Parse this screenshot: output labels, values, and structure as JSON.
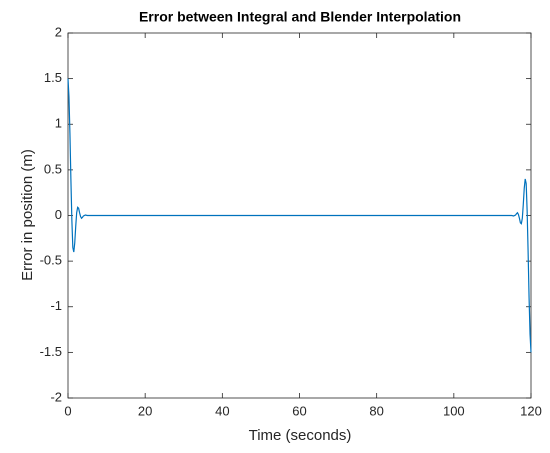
{
  "chart_data": {
    "type": "line",
    "title": "Error between Integral and Blender Interpolation",
    "x_label": "Time (seconds)",
    "y_label": "Error in position (m)",
    "x": [
      0,
      0.25,
      0.5,
      0.75,
      1,
      1.25,
      1.5,
      1.75,
      2,
      2.25,
      2.5,
      2.75,
      3,
      3.25,
      3.5,
      3.75,
      4,
      4.5,
      5,
      115,
      115.5,
      116,
      116.25,
      116.5,
      116.75,
      117,
      117.25,
      117.5,
      117.75,
      118,
      118.25,
      118.5,
      118.75,
      119,
      119.25,
      119.5,
      119.75,
      120
    ],
    "series": [
      {
        "color": "#0072bd",
        "values": [
          1.5,
          1.3,
          0.9,
          0.4,
          -0.05,
          -0.35,
          -0.4,
          -0.3,
          -0.12,
          0.03,
          0.09,
          0.08,
          0.03,
          -0.01,
          -0.03,
          -0.02,
          -0.005,
          0.005,
          0,
          0,
          -0.005,
          0.005,
          0.02,
          0.03,
          0.01,
          -0.03,
          -0.08,
          -0.09,
          -0.03,
          0.12,
          0.3,
          0.4,
          0.35,
          0.05,
          -0.4,
          -0.9,
          -1.3,
          -1.5
        ]
      }
    ],
    "xlim": [
      0,
      120
    ],
    "xticks": [
      0,
      20,
      40,
      60,
      80,
      100,
      120
    ],
    "ylim": [
      -2,
      2
    ],
    "yticks": [
      -2,
      -1.5,
      -1,
      -0.5,
      0,
      0.5,
      1,
      1.5,
      2
    ],
    "grid": false
  }
}
